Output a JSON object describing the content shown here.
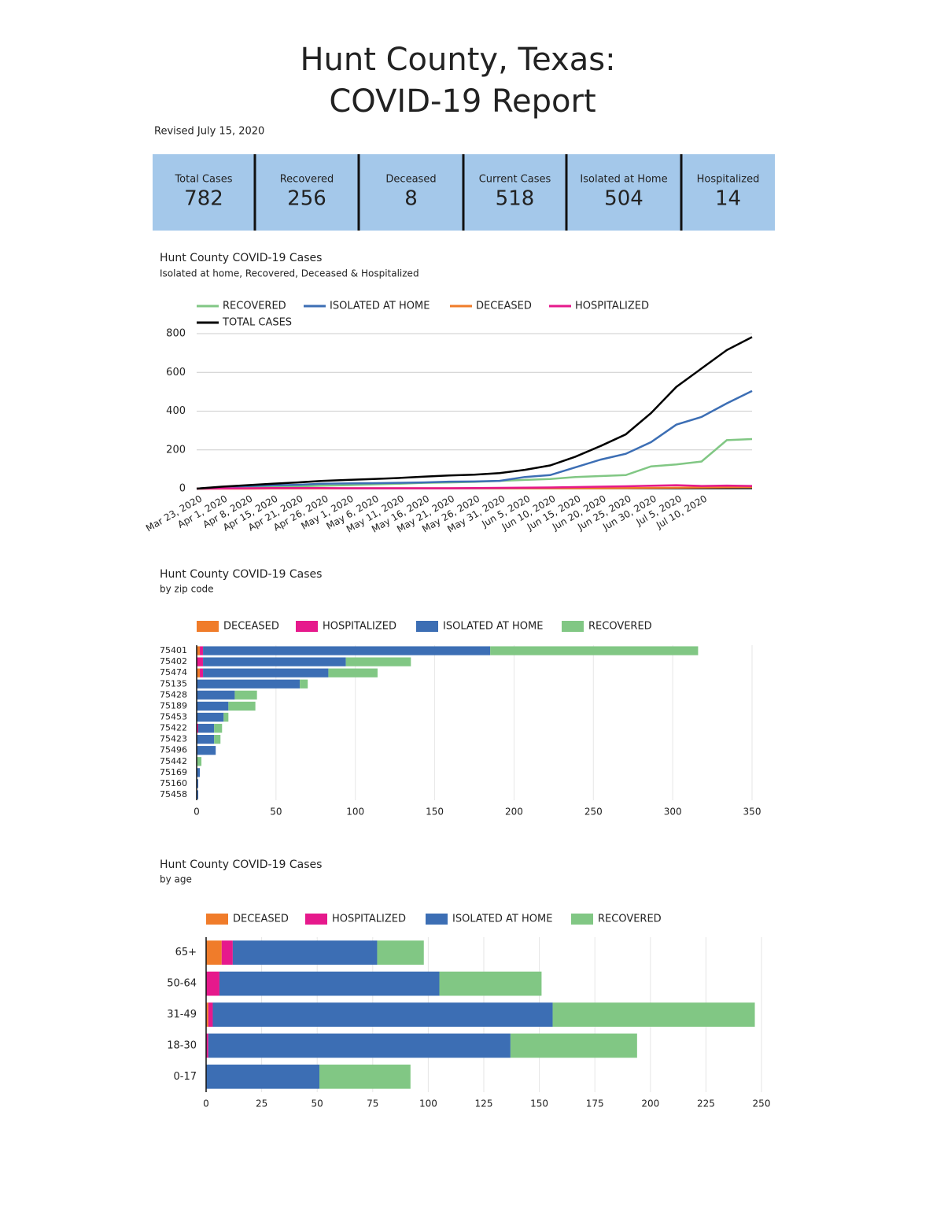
{
  "header": {
    "title_line1": "Hunt County, Texas:",
    "title_line2": "COVID-19 Report",
    "revised": "Revised July 15, 2020"
  },
  "stats": [
    {
      "label": "Total Cases",
      "value": 782
    },
    {
      "label": "Recovered",
      "value": 256
    },
    {
      "label": "Deceased",
      "value": 8
    },
    {
      "label": "Current Cases",
      "value": 518
    },
    {
      "label": "Isolated at Home",
      "value": 504
    },
    {
      "label": "Hospitalized",
      "value": 14
    }
  ],
  "chart_data": [
    {
      "type": "line",
      "title": "Hunt County COVID-19 Cases",
      "subtitle": "Isolated at home, Recovered, Deceased & Hospitalized",
      "categories": [
        "Mar 23, 2020",
        "Apr 1, 2020",
        "Apr 8, 2020",
        "Apr 15, 2020",
        "Apr 21, 2020",
        "Apr 26, 2020",
        "May 1, 2020",
        "May 6, 2020",
        "May 11, 2020",
        "May 16, 2020",
        "May 21, 2020",
        "May 26, 2020",
        "May 31, 2020",
        "Jun 5, 2020",
        "Jun 10, 2020",
        "Jun 15, 2020",
        "Jun 20, 2020",
        "Jun 25, 2020",
        "Jun 30, 2020",
        "Jul 5, 2020",
        "Jul 10, 2020",
        null,
        null
      ],
      "series": [
        {
          "name": "RECOVERED",
          "color": "#81c784",
          "values": [
            0,
            2,
            5,
            8,
            12,
            15,
            18,
            22,
            25,
            30,
            32,
            35,
            40,
            45,
            50,
            60,
            65,
            70,
            115,
            125,
            140,
            250,
            256
          ]
        },
        {
          "name": "ISOLATED AT HOME",
          "color": "#3c6eb4",
          "values": [
            0,
            8,
            13,
            17,
            20,
            25,
            27,
            28,
            30,
            32,
            36,
            37,
            40,
            60,
            70,
            110,
            150,
            180,
            240,
            330,
            370,
            440,
            504
          ]
        },
        {
          "name": "DECEASED",
          "color": "#f07c2a",
          "values": [
            0,
            0,
            0,
            1,
            1,
            1,
            2,
            2,
            2,
            2,
            2,
            2,
            2,
            2,
            2,
            2,
            2,
            3,
            4,
            5,
            6,
            7,
            8
          ]
        },
        {
          "name": "HOSPITALIZED",
          "color": "#e6198c",
          "values": [
            0,
            1,
            2,
            3,
            3,
            3,
            2,
            2,
            2,
            2,
            2,
            3,
            4,
            5,
            6,
            8,
            10,
            12,
            15,
            18,
            14,
            16,
            14
          ]
        },
        {
          "name": "TOTAL CASES",
          "color": "#000000",
          "values": [
            0,
            10,
            18,
            25,
            32,
            40,
            45,
            50,
            55,
            62,
            68,
            72,
            80,
            97,
            120,
            165,
            220,
            280,
            390,
            525,
            620,
            715,
            782
          ]
        }
      ],
      "ylim": [
        0,
        800
      ],
      "yticks": [
        0,
        200,
        400,
        600,
        800
      ],
      "grid": true,
      "legend": "top"
    },
    {
      "type": "bar",
      "orientation": "horizontal",
      "stacked": true,
      "title": "Hunt County COVID-19 Cases",
      "subtitle": "by zip code",
      "categories": [
        "75401",
        "75402",
        "75474",
        "75135",
        "75428",
        "75189",
        "75453",
        "75422",
        "75423",
        "75496",
        "75442",
        "75169",
        "75160",
        "75458"
      ],
      "series": [
        {
          "name": "DECEASED",
          "color": "#f07c2a",
          "values": [
            2,
            0,
            2,
            0,
            0,
            0,
            0,
            0,
            0,
            0,
            0,
            0,
            0,
            0
          ]
        },
        {
          "name": "HOSPITALIZED",
          "color": "#e6198c",
          "values": [
            2,
            4,
            2,
            0,
            0,
            0,
            0,
            1,
            0,
            0,
            0,
            0,
            0,
            0
          ]
        },
        {
          "name": "ISOLATED AT HOME",
          "color": "#3c6eb4",
          "values": [
            181,
            90,
            79,
            65,
            24,
            20,
            17,
            10,
            11,
            12,
            0,
            2,
            1,
            1
          ]
        },
        {
          "name": "RECOVERED",
          "color": "#81c784",
          "values": [
            131,
            41,
            31,
            5,
            14,
            17,
            3,
            5,
            4,
            0,
            3,
            0,
            0,
            0
          ]
        }
      ],
      "xlim": [
        0,
        350
      ],
      "xticks": [
        0,
        50,
        100,
        150,
        200,
        250,
        300,
        350
      ],
      "grid": true,
      "legend": "top"
    },
    {
      "type": "bar",
      "orientation": "horizontal",
      "stacked": true,
      "title": "Hunt County COVID-19 Cases",
      "subtitle": "by age",
      "categories": [
        "65+",
        "50-64",
        "31-49",
        "18-30",
        "0-17"
      ],
      "series": [
        {
          "name": "DECEASED",
          "color": "#f07c2a",
          "values": [
            7,
            0,
            1,
            0,
            0
          ]
        },
        {
          "name": "HOSPITALIZED",
          "color": "#e6198c",
          "values": [
            5,
            6,
            2,
            1,
            0
          ]
        },
        {
          "name": "ISOLATED AT HOME",
          "color": "#3c6eb4",
          "values": [
            65,
            99,
            153,
            136,
            51
          ]
        },
        {
          "name": "RECOVERED",
          "color": "#81c784",
          "values": [
            21,
            46,
            91,
            57,
            41
          ]
        }
      ],
      "xlim": [
        0,
        250
      ],
      "xticks": [
        0,
        25,
        50,
        75,
        100,
        125,
        150,
        175,
        200,
        225,
        250
      ],
      "grid": true,
      "legend": "top"
    }
  ]
}
